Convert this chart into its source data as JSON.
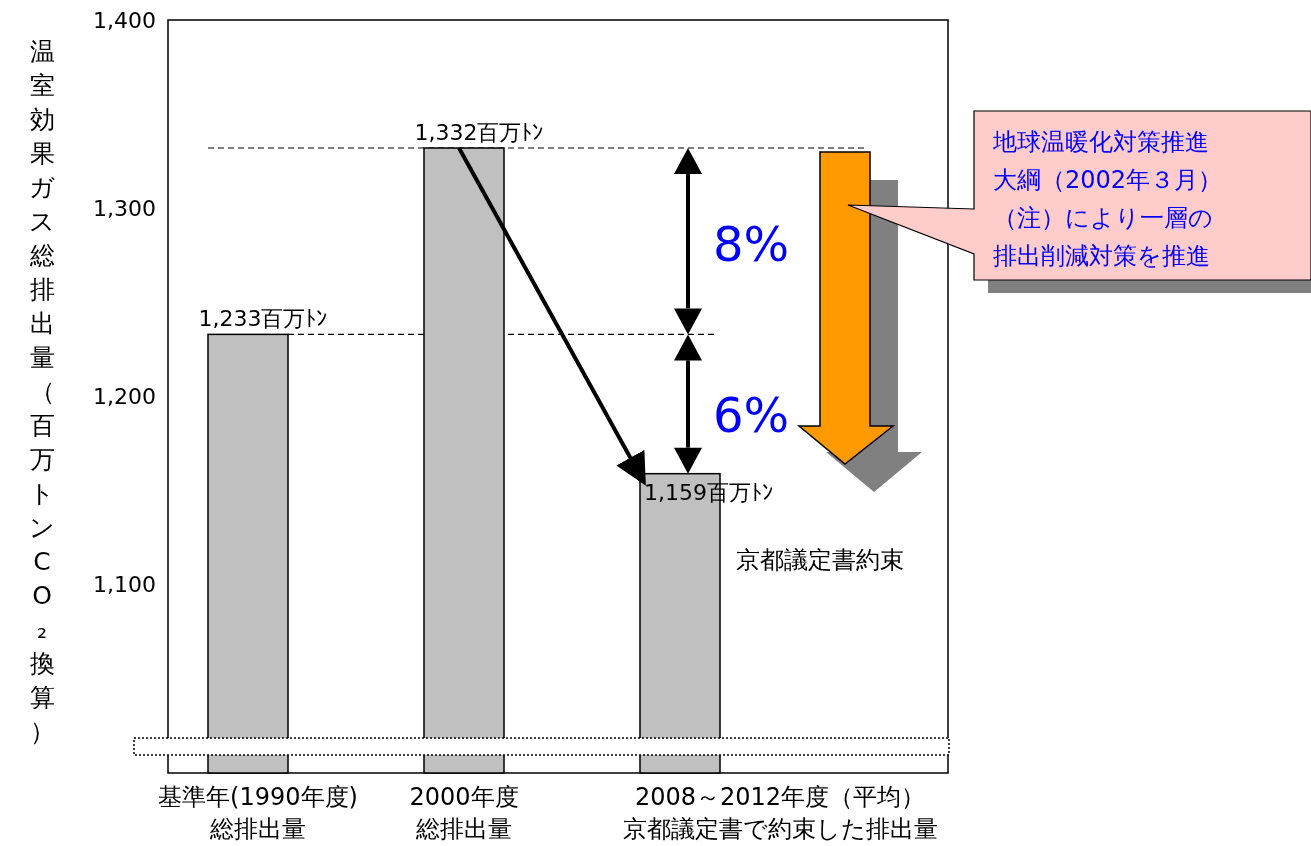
{
  "chart_data": {
    "type": "bar",
    "ylabel": "温室効果ガス総排出量（百万トンCO₂換算）",
    "categories": [
      "基準年(1990年度)総排出量",
      "2000年度総排出量",
      "2008～2012年度（平均）京都議定書で約束した排出量"
    ],
    "values": [
      1233,
      1332,
      1159
    ],
    "value_labels": [
      "1,233百万ﾄﾝ",
      "1,332百万ﾄﾝ",
      "1,159百万ﾄﾝ"
    ],
    "color": "#c0c0c0",
    "ylim": [
      1000,
      1400
    ],
    "yticks": [
      {
        "value": 1100,
        "label": "1,100"
      },
      {
        "value": 1200,
        "label": "1,200"
      },
      {
        "value": 1300,
        "label": "1,300"
      },
      {
        "value": 1400,
        "label": "1,400"
      }
    ],
    "grid": false,
    "ref_lines": [
      {
        "axis": "y",
        "value": 1332,
        "line_style": "dashed",
        "color": "#000000"
      },
      {
        "axis": "y",
        "value": 1233,
        "line_style": "dashed",
        "color": "#000000"
      }
    ],
    "annotations": [
      "8%",
      "6%",
      "地球温暖化対策推進大綱（2002年３月）（注）により一層の排出削減対策を推進",
      "京都議定書約束"
    ]
  }
}
